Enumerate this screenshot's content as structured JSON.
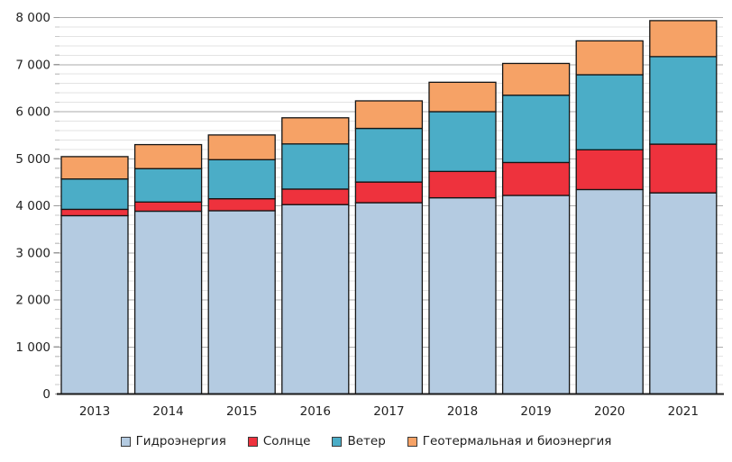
{
  "chart_data": {
    "type": "bar",
    "stacked": true,
    "title": "",
    "xlabel": "",
    "ylabel": "",
    "categories": [
      "2013",
      "2014",
      "2015",
      "2016",
      "2017",
      "2018",
      "2019",
      "2020",
      "2021"
    ],
    "series": [
      {
        "name": "Гидроэнергия",
        "color": "#B4CBE1",
        "values": [
          3790,
          3885,
          3895,
          4025,
          4065,
          4170,
          4220,
          4345,
          4275
        ]
      },
      {
        "name": "Солнце",
        "color": "#EE323D",
        "values": [
          135,
          195,
          255,
          330,
          440,
          560,
          700,
          845,
          1035
        ]
      },
      {
        "name": "Ветер",
        "color": "#4BADC7",
        "values": [
          645,
          710,
          830,
          960,
          1140,
          1270,
          1430,
          1595,
          1860
        ]
      },
      {
        "name": "Геотермальная и биоэнергия",
        "color": "#F6A266",
        "values": [
          475,
          510,
          525,
          555,
          585,
          625,
          675,
          720,
          765
        ]
      }
    ],
    "y_axis": {
      "min": 0,
      "max": 8000,
      "major_step": 1000,
      "minor_step": 200,
      "tick_labels": [
        "0",
        "1 000",
        "2 000",
        "3 000",
        "4 000",
        "5 000",
        "6 000",
        "7 000",
        "8 000"
      ]
    },
    "legend_position": "bottom",
    "grid": {
      "minor": true,
      "major": true
    }
  },
  "colors": {
    "background": "#FFFFFF",
    "grid_minor": "#E3E3E3",
    "grid_major": "#ABABAB",
    "tick_minor": "#C9C9C9",
    "tick_major": "#9A9A9A",
    "axis_line": "#1A1A1A",
    "bar_stroke": "#141414",
    "text": "#212121"
  }
}
